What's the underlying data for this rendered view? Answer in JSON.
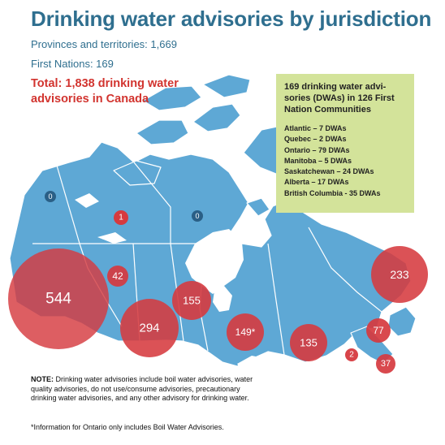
{
  "title": "Drinking water advisories by jurisdiction",
  "provinces_line": "Provinces and territories: 1,669",
  "first_nations_line": "First Nations: 169",
  "total_line1": "Total: 1,838 drinking water",
  "total_line2": "advisories in Canada",
  "info_box": {
    "title": "169 drinking water advi-sories (DWAs) in 126 First Nation Communities",
    "items": [
      "Atlantic – 7 DWAs",
      "Quebec – 2 DWAs",
      "Ontario – 79 DWAs",
      "Manitoba – 5 DWAs",
      "Saskatchewan – 24 DWAs",
      "Alberta – 17 DWAs",
      "British Columbia - 35 DWAs"
    ]
  },
  "jurisdictions": [
    {
      "id": "yukon",
      "label": "0",
      "value": 0
    },
    {
      "id": "nwt",
      "label": "1",
      "value": 1
    },
    {
      "id": "nunavut",
      "label": "0",
      "value": 0
    },
    {
      "id": "bc",
      "label": "544",
      "value": 544
    },
    {
      "id": "ab-north",
      "label": "42",
      "value": 42
    },
    {
      "id": "ab",
      "label": "294",
      "value": 294
    },
    {
      "id": "sk",
      "label": "155",
      "value": 155
    },
    {
      "id": "on",
      "label": "149*",
      "value": 149
    },
    {
      "id": "qc",
      "label": "135",
      "value": 135
    },
    {
      "id": "nl",
      "label": "233",
      "value": 233
    },
    {
      "id": "nb",
      "label": "77",
      "value": 77
    },
    {
      "id": "pei",
      "label": "2",
      "value": 2
    },
    {
      "id": "ns",
      "label": "37",
      "value": 37
    }
  ],
  "colors": {
    "land": "#5ea8d5",
    "border": "#ffffff",
    "bubble": "#d63a3f",
    "zero_marker": "#2a5f86",
    "title": "#2f6f8f",
    "total": "#d2342f",
    "info_bg": "#d3e39a"
  },
  "note_label": "NOTE:",
  "note_text": "Drinking water advisories include boil water advisories, water quality advisories, do not use/consume advisories, precautionary drinking water advisories, and any other advisory for drinking water.",
  "footnote": "*Information for Ontario only includes Boil Water Advisories."
}
